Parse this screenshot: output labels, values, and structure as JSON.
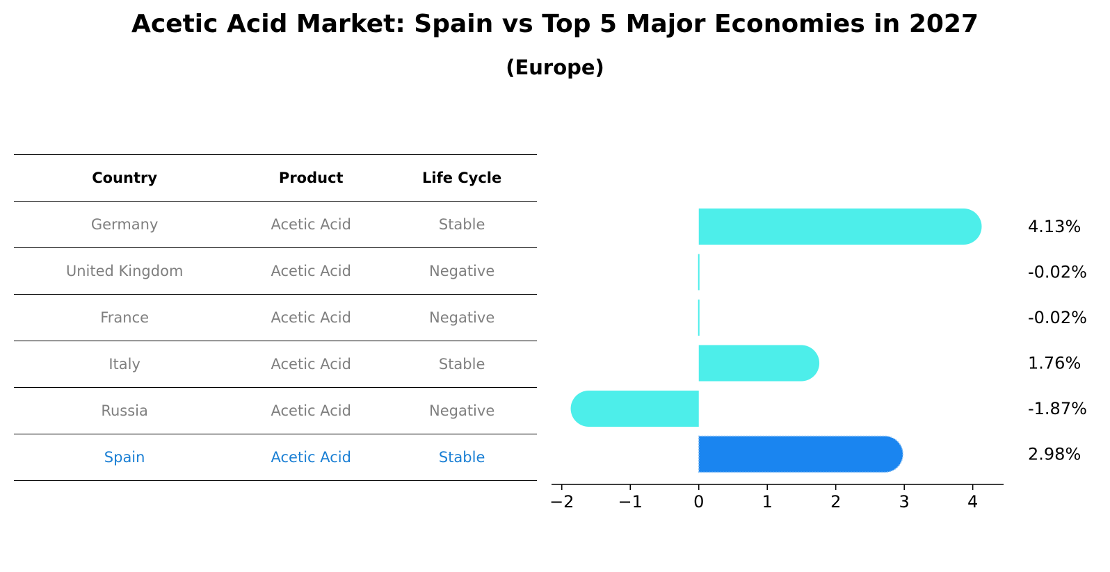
{
  "title": "Acetic Acid Market: Spain vs Top 5 Major Economies in 2027",
  "subtitle": "(Europe)",
  "table": {
    "headers": [
      "Country",
      "Product",
      "Life Cycle"
    ],
    "rows": [
      {
        "country": "Germany",
        "product": "Acetic Acid",
        "life_cycle": "Stable"
      },
      {
        "country": "United Kingdom",
        "product": "Acetic Acid",
        "life_cycle": "Negative"
      },
      {
        "country": "France",
        "product": "Acetic Acid",
        "life_cycle": "Negative"
      },
      {
        "country": "Italy",
        "product": "Acetic Acid",
        "life_cycle": "Stable"
      },
      {
        "country": "Russia",
        "product": "Acetic Acid",
        "life_cycle": "Negative"
      },
      {
        "country": "Spain",
        "product": "Acetic Acid",
        "life_cycle": "Stable"
      }
    ]
  },
  "chart_data": {
    "type": "bar",
    "orientation": "horizontal",
    "categories": [
      "Germany",
      "United Kingdom",
      "France",
      "Italy",
      "Russia",
      "Spain"
    ],
    "values": [
      4.13,
      -0.02,
      -0.02,
      1.76,
      -1.87,
      2.98
    ],
    "value_labels": [
      "4.13%",
      "-0.02%",
      "-0.02%",
      "1.76%",
      "-1.87%",
      "2.98%"
    ],
    "highlight": "Spain",
    "xlim": [
      -2.15,
      4.45
    ],
    "xticks": [
      -2,
      -1,
      0,
      1,
      2,
      3,
      4
    ],
    "xtick_labels": [
      "−2",
      "−1",
      "0",
      "1",
      "2",
      "3",
      "4"
    ],
    "grid": false,
    "colors": {
      "default": "#4deeea",
      "highlight": "#1a85f0"
    }
  }
}
